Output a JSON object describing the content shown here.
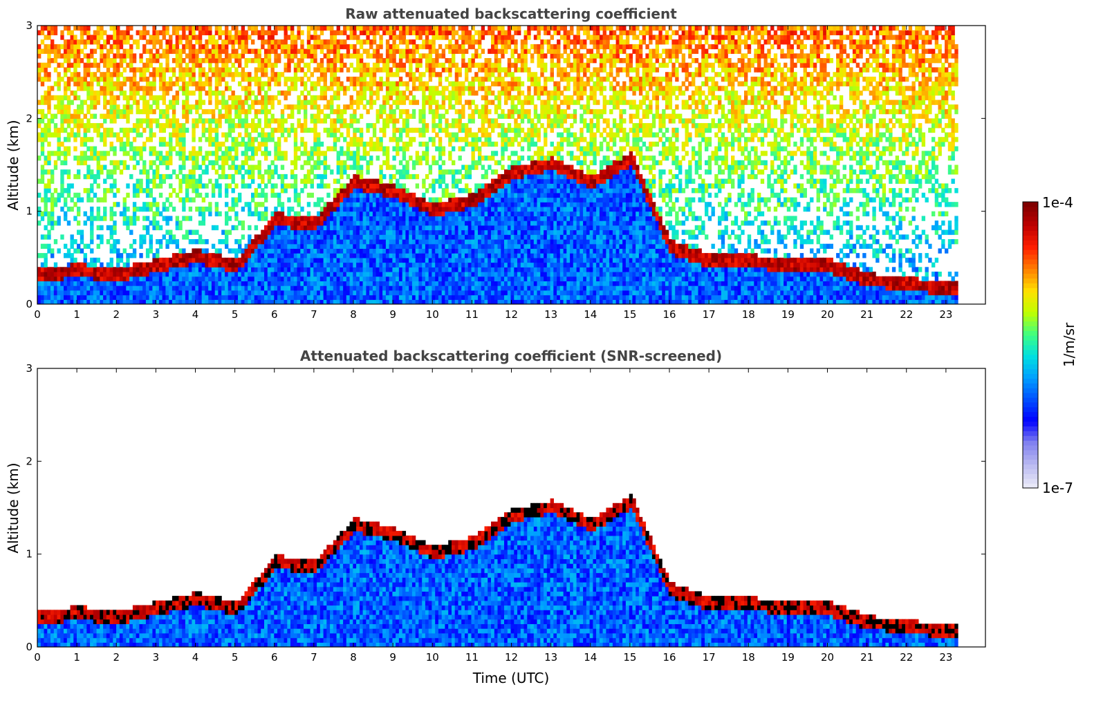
{
  "chart_data": [
    {
      "type": "heatmap",
      "title": "Raw attenuated backscattering coefficient",
      "xlabel": "",
      "ylabel": "Altitude (km)",
      "xlim": [
        0,
        24
      ],
      "ylim": [
        0,
        3
      ],
      "xticks": [
        "0",
        "1",
        "2",
        "3",
        "4",
        "5",
        "6",
        "7",
        "8",
        "9",
        "10",
        "11",
        "12",
        "13",
        "14",
        "15",
        "16",
        "17",
        "18",
        "19",
        "20",
        "21",
        "22",
        "23"
      ],
      "yticks": [
        "0",
        "1",
        "2",
        "3"
      ],
      "data_end_hour": 23.3,
      "cloud_layer": {
        "time_utc": [
          0,
          1,
          2,
          3,
          4,
          5,
          6,
          7,
          8,
          9,
          10,
          11,
          12,
          13,
          14,
          15,
          16,
          17,
          18,
          19,
          20,
          21,
          22,
          23.3
        ],
        "altitude_km": [
          0.3,
          0.35,
          0.3,
          0.4,
          0.5,
          0.4,
          0.9,
          0.85,
          1.3,
          1.2,
          1.0,
          1.1,
          1.4,
          1.5,
          1.3,
          1.55,
          0.6,
          0.45,
          0.45,
          0.4,
          0.4,
          0.25,
          0.2,
          0.15
        ]
      },
      "screened": false
    },
    {
      "type": "heatmap",
      "title": "Attenuated backscattering coefficient (SNR-screened)",
      "xlabel": "Time (UTC)",
      "ylabel": "Altitude (km)",
      "xlim": [
        0,
        24
      ],
      "ylim": [
        0,
        3
      ],
      "xticks": [
        "0",
        "1",
        "2",
        "3",
        "4",
        "5",
        "6",
        "7",
        "8",
        "9",
        "10",
        "11",
        "12",
        "13",
        "14",
        "15",
        "16",
        "17",
        "18",
        "19",
        "20",
        "21",
        "22",
        "23"
      ],
      "yticks": [
        "0",
        "1",
        "2",
        "3"
      ],
      "data_end_hour": 23.3,
      "cloud_layer": {
        "time_utc": [
          0,
          1,
          2,
          3,
          4,
          5,
          6,
          7,
          8,
          9,
          10,
          11,
          12,
          13,
          14,
          15,
          16,
          17,
          18,
          19,
          20,
          21,
          22,
          23.3
        ],
        "altitude_km": [
          0.3,
          0.35,
          0.3,
          0.4,
          0.5,
          0.4,
          0.9,
          0.85,
          1.3,
          1.2,
          1.0,
          1.1,
          1.4,
          1.5,
          1.3,
          1.55,
          0.6,
          0.45,
          0.45,
          0.4,
          0.4,
          0.25,
          0.2,
          0.15
        ]
      },
      "screened": true
    }
  ],
  "colorbar": {
    "label": "1/m/sr",
    "min_label": "1e-7",
    "max_label": "1e-4",
    "colors": [
      "#e8e8f8",
      "#b8b8f0",
      "#8080f0",
      "#0000ff",
      "#0050ff",
      "#00a0ff",
      "#00e0e0",
      "#40ff80",
      "#c0ff00",
      "#ffe000",
      "#ff8000",
      "#ff2000",
      "#c00000",
      "#800000"
    ]
  }
}
